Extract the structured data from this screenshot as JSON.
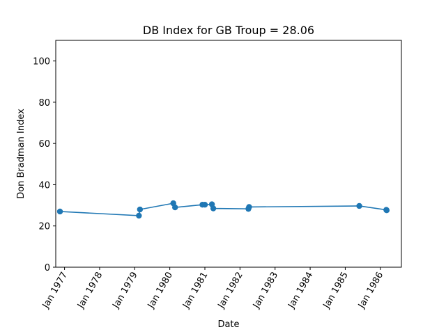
{
  "chart_data": {
    "type": "line",
    "title": "DB Index for GB Troup = 28.06",
    "xlabel": "Date",
    "ylabel": "Don Bradman Index",
    "ylim": [
      0,
      110
    ],
    "xlim": [
      1976.75,
      1986.6
    ],
    "yticks": [
      0,
      20,
      40,
      60,
      80,
      100
    ],
    "xticks": [
      {
        "value": 1977,
        "label": "Jan 1977"
      },
      {
        "value": 1978,
        "label": "Jan 1978"
      },
      {
        "value": 1979,
        "label": "Jan 1979"
      },
      {
        "value": 1980,
        "label": "Jan 1980"
      },
      {
        "value": 1981,
        "label": "Jan 1981"
      },
      {
        "value": 1982,
        "label": "Jan 1982"
      },
      {
        "value": 1983,
        "label": "Jan 1983"
      },
      {
        "value": 1984,
        "label": "Jan 1984"
      },
      {
        "value": 1985,
        "label": "Jan 1985"
      },
      {
        "value": 1986,
        "label": "Jan 1986"
      }
    ],
    "series": [
      {
        "name": "GB Troup",
        "color": "#1f77b4",
        "points": [
          {
            "x": 1976.87,
            "y": 27.0
          },
          {
            "x": 1979.12,
            "y": 25.0
          },
          {
            "x": 1979.15,
            "y": 28.0
          },
          {
            "x": 1980.1,
            "y": 31.0
          },
          {
            "x": 1980.15,
            "y": 29.0
          },
          {
            "x": 1980.93,
            "y": 30.3
          },
          {
            "x": 1981.0,
            "y": 30.3
          },
          {
            "x": 1981.2,
            "y": 30.5
          },
          {
            "x": 1981.24,
            "y": 28.5
          },
          {
            "x": 1982.24,
            "y": 28.3
          },
          {
            "x": 1982.26,
            "y": 29.2
          },
          {
            "x": 1985.4,
            "y": 29.7
          },
          {
            "x": 1986.17,
            "y": 27.8
          },
          {
            "x": 1986.18,
            "y": 27.6
          }
        ]
      }
    ]
  }
}
